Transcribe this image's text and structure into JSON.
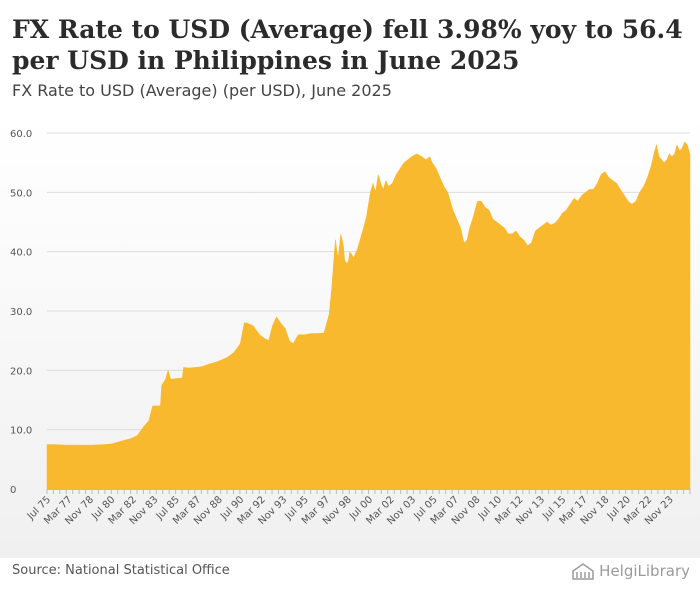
{
  "header": {
    "title": "FX Rate to USD (Average) fell 3.98% yoy to 56.4 per USD in Philippines in June 2025",
    "subtitle": "FX Rate to USD (Average) (per USD), June 2025"
  },
  "footer": {
    "source": "Source: National Statistical Office",
    "logo": "HelgiLibrary"
  },
  "colors": {
    "fill": "#f8b92e",
    "grid": "#dddddd",
    "axis_text": "#555555"
  },
  "chart_data": {
    "type": "area",
    "title": "FX Rate to USD (Average) (per USD), June 2025",
    "ylim": [
      0,
      60
    ],
    "yticks": [
      "0",
      "10.0",
      "20.0",
      "30.0",
      "40.0",
      "50.0",
      "60.0"
    ],
    "xrange": [
      1975.5,
      2025.4
    ],
    "xtick_labels": [
      "Jul 75",
      "Mar 77",
      "Nov 78",
      "Jul 80",
      "Mar 82",
      "Nov 83",
      "Jul 85",
      "Mar 87",
      "Nov 88",
      "Jul 90",
      "Mar 92",
      "Nov 93",
      "Jul 95",
      "Mar 97",
      "Nov 98",
      "Jul 00",
      "Mar 02",
      "Nov 03",
      "Jul 05",
      "Mar 07",
      "Nov 08",
      "Jul 10",
      "Mar 12",
      "Nov 13",
      "Jul 15",
      "Mar 17",
      "Nov 18",
      "Jul 20",
      "Mar 22",
      "Nov 23"
    ],
    "grid": true,
    "legend": "none",
    "series": [
      {
        "x": [
          1975.5,
          1976.0,
          1977.0,
          1978.0,
          1979.0,
          1980.0,
          1980.5,
          1981.0,
          1981.5,
          1982.0,
          1982.5,
          1983.0,
          1983.4,
          1983.7,
          1983.8,
          1984.3,
          1984.4,
          1984.7,
          1984.9,
          1985.1,
          1985.5,
          1986.0,
          1986.1,
          1986.5,
          1987.0,
          1987.5,
          1988.0,
          1988.5,
          1989.0,
          1989.5,
          1990.0,
          1990.5,
          1990.8,
          1991.0,
          1991.5,
          1992.0,
          1992.3,
          1992.7,
          1993.0,
          1993.3,
          1993.7,
          1994.0,
          1994.3,
          1994.6,
          1995.0,
          1995.5,
          1996.0,
          1996.5,
          1997.0,
          1997.4,
          1997.6,
          1997.8,
          1997.9,
          1998.0,
          1998.1,
          1998.3,
          1998.5,
          1998.6,
          1998.8,
          1998.9,
          1999.0,
          1999.3,
          1999.6,
          2000.0,
          2000.3,
          2000.6,
          2000.8,
          2001.0,
          2001.2,
          2001.4,
          2001.6,
          2001.8,
          2002.0,
          2002.3,
          2002.6,
          2002.9,
          2003.2,
          2003.5,
          2003.8,
          2004.2,
          2004.6,
          2004.9,
          2005.2,
          2005.4,
          2005.7,
          2006.0,
          2006.3,
          2006.6,
          2007.0,
          2007.3,
          2007.6,
          2007.8,
          2007.9,
          2008.1,
          2008.3,
          2008.6,
          2008.9,
          2009.2,
          2009.5,
          2009.8,
          2010.1,
          2010.4,
          2010.7,
          2011.0,
          2011.3,
          2011.6,
          2011.9,
          2012.2,
          2012.5,
          2012.8,
          2013.1,
          2013.4,
          2013.7,
          2014.0,
          2014.3,
          2014.6,
          2014.9,
          2015.2,
          2015.5,
          2015.8,
          2016.1,
          2016.4,
          2016.7,
          2017.0,
          2017.3,
          2017.6,
          2017.9,
          2018.2,
          2018.5,
          2018.8,
          2019.1,
          2019.4,
          2019.7,
          2020.0,
          2020.3,
          2020.6,
          2020.9,
          2021.2,
          2021.5,
          2021.8,
          2022.1,
          2022.4,
          2022.6,
          2022.8,
          2023.0,
          2023.2,
          2023.4,
          2023.6,
          2023.8,
          2024.0,
          2024.2,
          2024.4,
          2024.6,
          2024.8,
          2025.0,
          2025.2,
          2025.4
        ],
        "y": [
          7.5,
          7.5,
          7.4,
          7.4,
          7.4,
          7.5,
          7.6,
          7.9,
          8.2,
          8.5,
          9.0,
          10.5,
          11.5,
          14.0,
          14.0,
          14.0,
          17.5,
          18.5,
          20.0,
          18.5,
          18.6,
          18.7,
          20.5,
          20.4,
          20.5,
          20.6,
          21.0,
          21.3,
          21.7,
          22.2,
          23.0,
          24.5,
          28.0,
          28.0,
          27.5,
          26.0,
          25.5,
          25.0,
          27.5,
          29.0,
          27.8,
          27.0,
          25.0,
          24.5,
          26.0,
          26.0,
          26.2,
          26.2,
          26.3,
          29.5,
          34.0,
          40.0,
          42.0,
          40.0,
          39.0,
          43.0,
          41.0,
          38.5,
          38.0,
          38.5,
          40.0,
          39.0,
          40.5,
          43.5,
          46.0,
          50.0,
          51.5,
          50.0,
          53.0,
          51.5,
          50.5,
          52.0,
          51.0,
          51.5,
          53.0,
          54.0,
          55.0,
          55.5,
          56.0,
          56.5,
          56.0,
          55.5,
          56.0,
          55.0,
          54.0,
          52.5,
          51.0,
          50.0,
          47.0,
          45.5,
          44.0,
          42.0,
          41.5,
          42.0,
          44.0,
          46.0,
          48.5,
          48.5,
          47.5,
          47.0,
          45.5,
          45.0,
          44.5,
          44.0,
          43.0,
          43.0,
          43.5,
          42.5,
          42.0,
          41.0,
          41.5,
          43.5,
          44.0,
          44.5,
          45.0,
          44.5,
          44.8,
          45.5,
          46.5,
          47.0,
          48.0,
          49.0,
          48.5,
          49.5,
          50.0,
          50.5,
          50.5,
          51.5,
          53.0,
          53.5,
          52.5,
          52.0,
          51.5,
          50.5,
          49.5,
          48.5,
          48.0,
          48.5,
          50.0,
          51.0,
          52.5,
          54.5,
          56.5,
          58.0,
          56.0,
          55.5,
          55.0,
          55.5,
          56.5,
          56.0,
          56.5,
          58.0,
          57.0,
          57.5,
          58.5,
          58.0,
          56.4
        ]
      }
    ]
  }
}
